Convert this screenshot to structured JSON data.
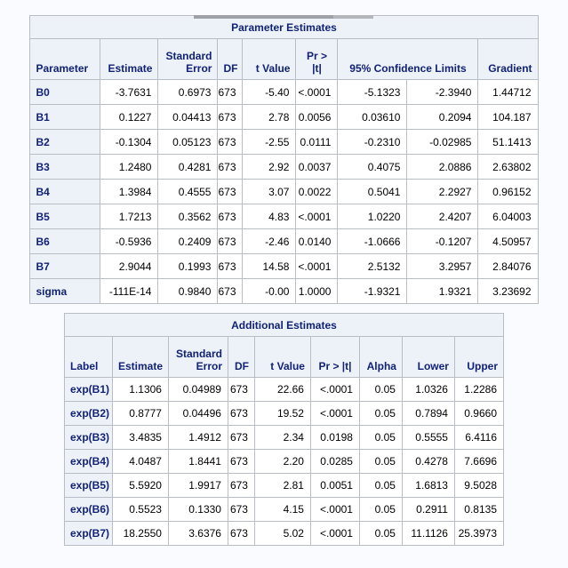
{
  "colors": {
    "page_background": "#FAFBFE",
    "header_background": "#EDF2F9",
    "header_text": "#112277",
    "cell_background": "#FFFFFF",
    "border": "#B9BDC5"
  },
  "tables": [
    {
      "title": "Parameter Estimates",
      "headers": [
        {
          "label": "Parameter",
          "align": "left"
        },
        {
          "label": "Estimate",
          "align": "right"
        },
        {
          "label": "Standard\nError",
          "align": "right"
        },
        {
          "label": "DF",
          "align": "right"
        },
        {
          "label": "t Value",
          "align": "right"
        },
        {
          "label": "Pr > |t|",
          "align": "center"
        },
        {
          "label": "95% Confidence Limits",
          "align": "center",
          "colspan": 2
        },
        {
          "label": "Gradient",
          "align": "right"
        }
      ],
      "rows": [
        {
          "label": "B0",
          "values": [
            "-3.7631",
            "0.6973",
            "673",
            "-5.40",
            "<.0001",
            "-5.1323",
            "-2.3940",
            "1.44712"
          ]
        },
        {
          "label": "B1",
          "values": [
            "0.1227",
            "0.04413",
            "673",
            "2.78",
            "0.0056",
            "0.03610",
            "0.2094",
            "104.187"
          ]
        },
        {
          "label": "B2",
          "values": [
            "-0.1304",
            "0.05123",
            "673",
            "-2.55",
            "0.0111",
            "-0.2310",
            "-0.02985",
            "51.1413"
          ]
        },
        {
          "label": "B3",
          "values": [
            "1.2480",
            "0.4281",
            "673",
            "2.92",
            "0.0037",
            "0.4075",
            "2.0886",
            "2.63802"
          ]
        },
        {
          "label": "B4",
          "values": [
            "1.3984",
            "0.4555",
            "673",
            "3.07",
            "0.0022",
            "0.5041",
            "2.2927",
            "0.96152"
          ]
        },
        {
          "label": "B5",
          "values": [
            "1.7213",
            "0.3562",
            "673",
            "4.83",
            "<.0001",
            "1.0220",
            "2.4207",
            "6.04003"
          ]
        },
        {
          "label": "B6",
          "values": [
            "-0.5936",
            "0.2409",
            "673",
            "-2.46",
            "0.0140",
            "-1.0666",
            "-0.1207",
            "4.50957"
          ]
        },
        {
          "label": "B7",
          "values": [
            "2.9044",
            "0.1993",
            "673",
            "14.58",
            "<.0001",
            "2.5132",
            "3.2957",
            "2.84076"
          ]
        },
        {
          "label": "sigma",
          "values": [
            "-111E-14",
            "0.9840",
            "673",
            "-0.00",
            "1.0000",
            "-1.9321",
            "1.9321",
            "3.23692"
          ]
        }
      ]
    },
    {
      "title": "Additional Estimates",
      "headers": [
        {
          "label": "Label",
          "align": "left"
        },
        {
          "label": "Estimate",
          "align": "right"
        },
        {
          "label": "Standard\nError",
          "align": "right"
        },
        {
          "label": "DF",
          "align": "right"
        },
        {
          "label": "t Value",
          "align": "right"
        },
        {
          "label": "Pr > |t|",
          "align": "center"
        },
        {
          "label": "Alpha",
          "align": "right"
        },
        {
          "label": "Lower",
          "align": "right"
        },
        {
          "label": "Upper",
          "align": "right"
        }
      ],
      "rows": [
        {
          "label": "exp(B1)",
          "values": [
            "1.1306",
            "0.04989",
            "673",
            "22.66",
            "<.0001",
            "0.05",
            "1.0326",
            "1.2286"
          ]
        },
        {
          "label": "exp(B2)",
          "values": [
            "0.8777",
            "0.04496",
            "673",
            "19.52",
            "<.0001",
            "0.05",
            "0.7894",
            "0.9660"
          ]
        },
        {
          "label": "exp(B3)",
          "values": [
            "3.4835",
            "1.4912",
            "673",
            "2.34",
            "0.0198",
            "0.05",
            "0.5555",
            "6.4116"
          ]
        },
        {
          "label": "exp(B4)",
          "values": [
            "4.0487",
            "1.8441",
            "673",
            "2.20",
            "0.0285",
            "0.05",
            "0.4278",
            "7.6696"
          ]
        },
        {
          "label": "exp(B5)",
          "values": [
            "5.5920",
            "1.9917",
            "673",
            "2.81",
            "0.0051",
            "0.05",
            "1.6813",
            "9.5028"
          ]
        },
        {
          "label": "exp(B6)",
          "values": [
            "0.5523",
            "0.1330",
            "673",
            "4.15",
            "<.0001",
            "0.05",
            "0.2911",
            "0.8135"
          ]
        },
        {
          "label": "exp(B7)",
          "values": [
            "18.2550",
            "3.6376",
            "673",
            "5.02",
            "<.0001",
            "0.05",
            "11.1126",
            "25.3973"
          ]
        }
      ]
    }
  ]
}
